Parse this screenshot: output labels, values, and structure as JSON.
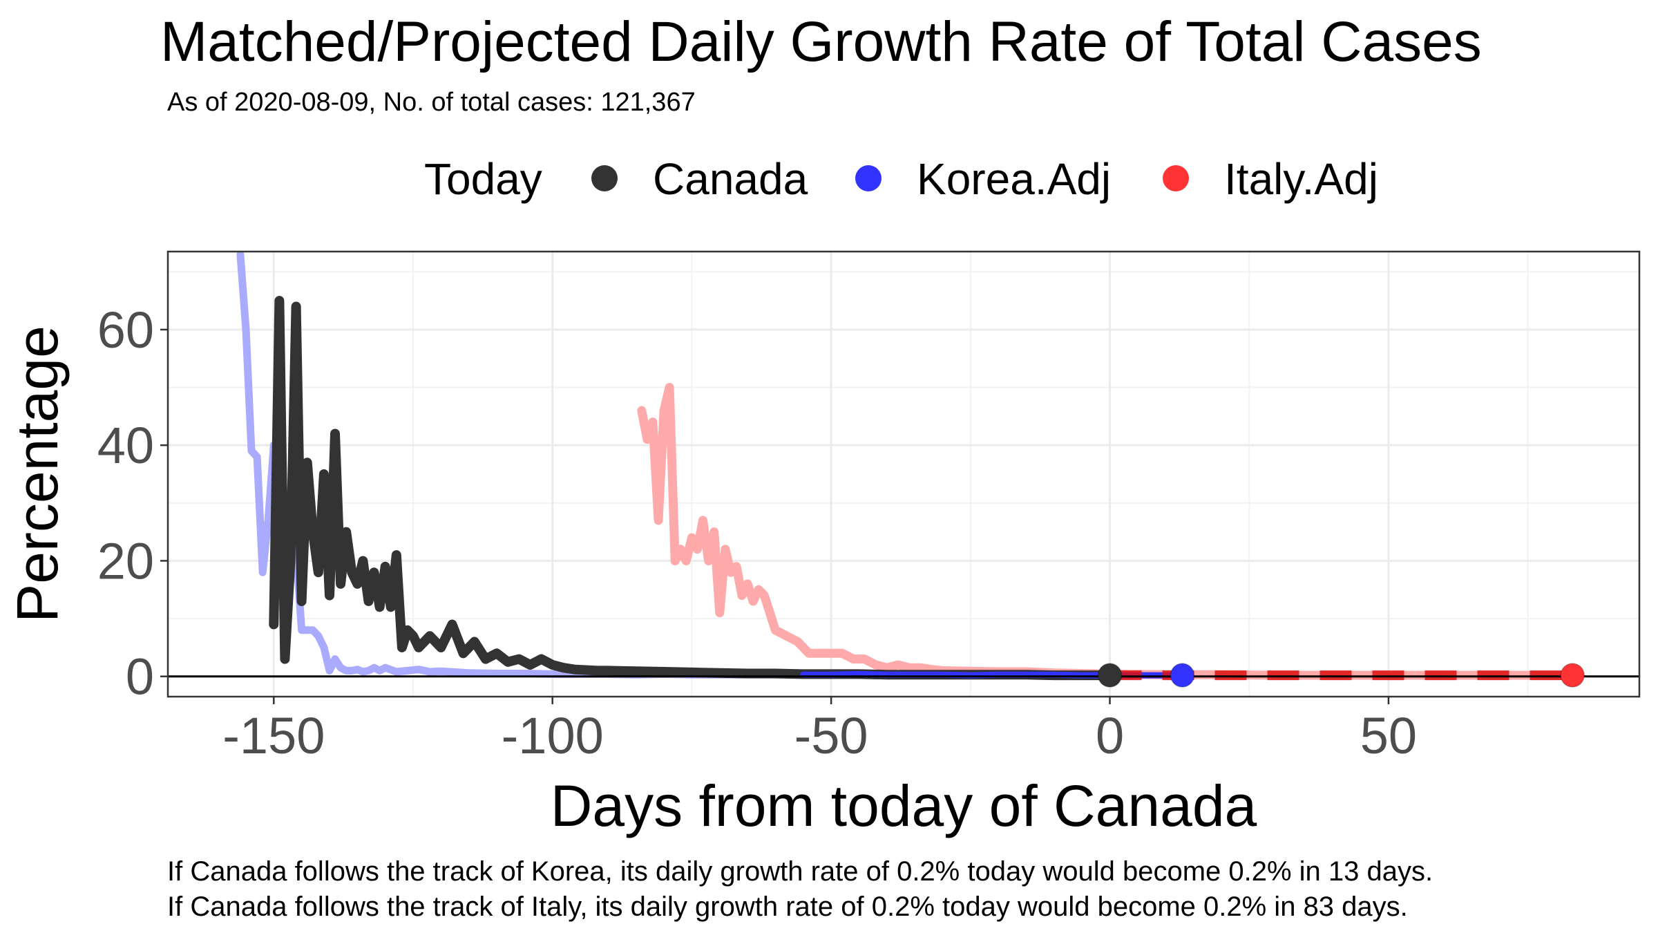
{
  "chart_data": {
    "type": "line",
    "title": "Matched/Projected Daily Growth Rate of Total Cases",
    "subtitle": "As of 2020-08-09, No. of total cases: 121,367",
    "xlabel": "Days from today of Canada",
    "ylabel": "Percentage",
    "xlim": [
      -169,
      95
    ],
    "ylim": [
      -3.5,
      73.5
    ],
    "x_ticks": [
      -150,
      -100,
      -50,
      0,
      50
    ],
    "x_tick_labels": [
      "-150",
      "-100",
      "-50",
      "0",
      "50"
    ],
    "y_ticks": [
      0,
      20,
      40,
      60
    ],
    "y_tick_labels": [
      "0",
      "20",
      "40",
      "60"
    ],
    "grid": true,
    "legend": {
      "title": "Today",
      "position": "top",
      "entries": [
        {
          "label": "Canada",
          "color": "#333333"
        },
        {
          "label": "Korea.Adj",
          "color": "#3333ff"
        },
        {
          "label": "Italy.Adj",
          "color": "#ff3333"
        }
      ]
    },
    "reference_line_y": 0,
    "series": [
      {
        "name": "Korea.Adj",
        "color": "#aaaaff",
        "x": [
          -156,
          -155,
          -154,
          -153,
          -152,
          -151,
          -150,
          -149,
          -148,
          -147,
          -146,
          -145,
          -144,
          -143,
          -142,
          -141,
          -140,
          -139,
          -138,
          -137,
          -136,
          -135,
          -134,
          -133,
          -132,
          -131,
          -130,
          -128,
          -126,
          -124,
          -122,
          -120,
          -115,
          -110,
          -105,
          -100,
          -95,
          -90,
          -85,
          -80,
          -75,
          -70,
          -65,
          -60,
          -55,
          -50,
          -45,
          -40,
          -35,
          -30,
          -25,
          -20,
          -15,
          -10,
          -5,
          0,
          5,
          10,
          13
        ],
        "y": [
          73,
          60,
          39,
          38,
          18,
          27,
          40,
          35,
          28,
          18,
          22,
          8,
          8,
          8,
          7,
          5,
          1,
          3,
          1.5,
          1,
          1,
          1.2,
          0.8,
          1,
          1.5,
          1,
          1.5,
          0.8,
          1,
          1.2,
          0.8,
          0.9,
          0.6,
          0.5,
          0.5,
          0.4,
          0.4,
          0.4,
          0.3,
          0.4,
          0.3,
          0.3,
          0.3,
          0.3,
          0.3,
          0.3,
          0.3,
          0.3,
          0.3,
          0.3,
          0.3,
          0.3,
          0.2,
          0.3,
          0.3,
          0.2,
          0.2,
          0.2,
          0.2
        ]
      },
      {
        "name": "Italy.Adj",
        "color": "#ffaaaa",
        "x": [
          -84,
          -83,
          -82,
          -81,
          -80,
          -79,
          -78,
          -77,
          -76,
          -75,
          -74,
          -73,
          -72,
          -71,
          -70,
          -69,
          -68,
          -67,
          -66,
          -65,
          -64,
          -63,
          -62,
          -61,
          -60,
          -58,
          -56,
          -54,
          -52,
          -50,
          -48,
          -46,
          -44,
          -42,
          -40,
          -38,
          -36,
          -34,
          -32,
          -30,
          -25,
          -20,
          -15,
          -10,
          -5,
          0,
          10,
          20,
          30,
          40,
          50,
          60,
          70,
          80,
          83
        ],
        "y": [
          46,
          41,
          44,
          27,
          46,
          50,
          20,
          22,
          20,
          24,
          22,
          27,
          20,
          25,
          11,
          22,
          18,
          19,
          14,
          16,
          13,
          15,
          14,
          11,
          8,
          7,
          6,
          4,
          4,
          4,
          4,
          3,
          3,
          2,
          1.5,
          2,
          1.5,
          1.5,
          1.2,
          1,
          0.9,
          0.8,
          0.8,
          0.6,
          0.5,
          0.4,
          0.3,
          0.3,
          0.2,
          0.2,
          0.2,
          0.2,
          0.2,
          0.2,
          0.2
        ]
      },
      {
        "name": "Canada",
        "color": "#333333",
        "x": [
          -150,
          -149,
          -148,
          -147,
          -146,
          -145,
          -144,
          -143,
          -142,
          -141,
          -140,
          -139,
          -138,
          -137,
          -136,
          -135,
          -134,
          -133,
          -132,
          -131,
          -130,
          -129,
          -128,
          -127,
          -126,
          -125,
          -124,
          -122,
          -120,
          -118,
          -116,
          -114,
          -112,
          -110,
          -108,
          -106,
          -104,
          -102,
          -100,
          -98,
          -96,
          -94,
          -92,
          -90,
          -85,
          -80,
          -75,
          -70,
          -65,
          -60,
          -55,
          -50,
          -45,
          -40,
          -35,
          -30,
          -25,
          -20,
          -15,
          -10,
          -5,
          0
        ],
        "y": [
          9,
          65,
          3,
          20,
          64,
          13,
          37,
          25,
          18,
          35,
          14,
          42,
          16,
          25,
          18,
          16,
          20,
          13,
          18,
          12,
          19,
          12,
          21,
          5,
          8,
          7,
          5,
          7,
          5,
          9,
          4,
          6,
          3,
          4,
          2.5,
          3,
          2,
          3,
          2,
          1.5,
          1.2,
          1.1,
          1,
          1,
          0.9,
          0.8,
          0.7,
          0.6,
          0.5,
          0.5,
          0.4,
          0.4,
          0.4,
          0.3,
          0.3,
          0.3,
          0.3,
          0.3,
          0.3,
          0.2,
          0.2,
          0.2
        ]
      },
      {
        "name": "Korea.Adj overlay",
        "color": "#3333ff",
        "x": [
          -55,
          -50,
          -45,
          -40,
          -35,
          -30,
          -25,
          -20,
          -15,
          -10,
          -5,
          0,
          5,
          10,
          13
        ],
        "y": [
          0.3,
          0.3,
          0.4,
          0.3,
          0.3,
          0.3,
          0.2,
          0.3,
          0.3,
          0.3,
          0.2,
          0.2,
          0.2,
          0.2,
          0.2
        ]
      },
      {
        "name": "Italy.Adj projected",
        "color": "#dd1111",
        "x": [
          0,
          83
        ],
        "y": [
          0.2,
          0.2
        ]
      }
    ],
    "points": [
      {
        "name": "Canada",
        "x": 0,
        "y": 0.2,
        "color": "#333333"
      },
      {
        "name": "Korea.Adj",
        "x": 13,
        "y": 0.2,
        "color": "#3333ff"
      },
      {
        "name": "Italy.Adj",
        "x": 83,
        "y": 0.2,
        "color": "#ff3333"
      }
    ]
  },
  "caption": {
    "line1": "If Canada follows the track of Korea, its daily growth rate of 0.2% today would become 0.2% in 13 days.",
    "line2": "If Canada follows the track of Italy, its daily growth rate of 0.2% today would become 0.2% in 83 days."
  }
}
